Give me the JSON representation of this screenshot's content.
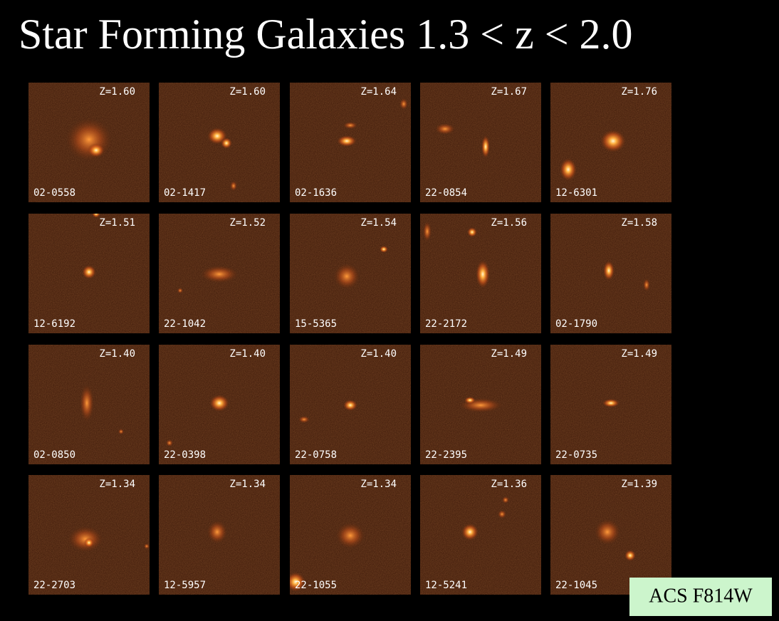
{
  "title": "Star Forming Galaxies 1.3 < z < 2.0",
  "panels": [
    {
      "z": "Z=1.60",
      "id": "02-0558"
    },
    {
      "z": "Z=1.60",
      "id": "02-1417"
    },
    {
      "z": "Z=1.64",
      "id": "02-1636"
    },
    {
      "z": "Z=1.67",
      "id": "22-0854"
    },
    {
      "z": "Z=1.76",
      "id": "12-6301"
    },
    {
      "z": "Z=1.51",
      "id": "12-6192"
    },
    {
      "z": "Z=1.52",
      "id": "22-1042"
    },
    {
      "z": "Z=1.54",
      "id": "15-5365"
    },
    {
      "z": "Z=1.56",
      "id": "22-2172"
    },
    {
      "z": "Z=1.58",
      "id": "02-1790"
    },
    {
      "z": "Z=1.40",
      "id": "02-0850"
    },
    {
      "z": "Z=1.40",
      "id": "22-0398"
    },
    {
      "z": "Z=1.40",
      "id": "22-0758"
    },
    {
      "z": "Z=1.49",
      "id": "22-2395"
    },
    {
      "z": "Z=1.49",
      "id": "22-0735"
    },
    {
      "z": "Z=1.34",
      "id": "22-2703"
    },
    {
      "z": "Z=1.34",
      "id": "12-5957"
    },
    {
      "z": "Z=1.34",
      "id": "22-1055"
    },
    {
      "z": "Z=1.36",
      "id": "12-5241"
    },
    {
      "z": "Z=1.39",
      "id": "22-1045"
    }
  ],
  "badge": "ACS F814W"
}
